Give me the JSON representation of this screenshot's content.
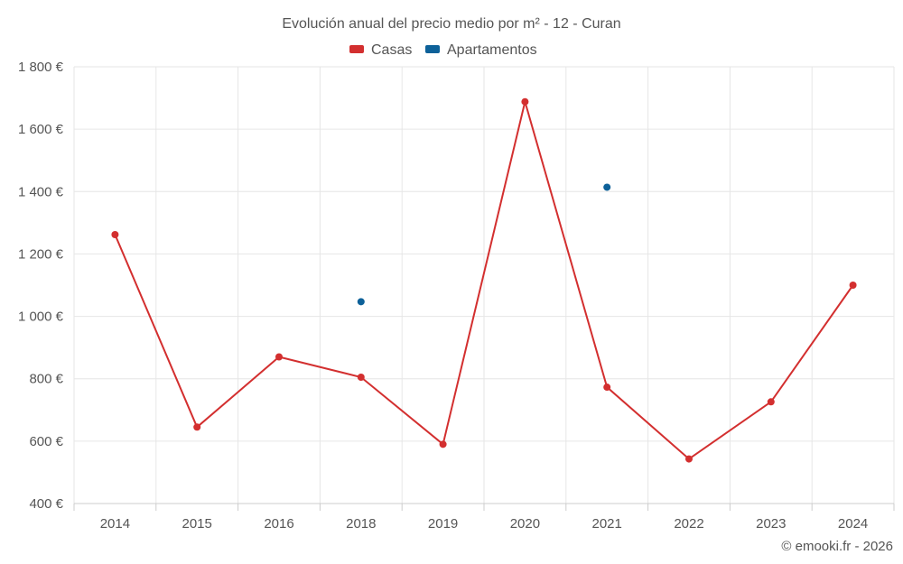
{
  "chart_data": {
    "type": "line",
    "title": "Evolución anual del precio medio por m² - 12 - Curan",
    "categories": [
      "2014",
      "2015",
      "2016",
      "2018",
      "2019",
      "2020",
      "2021",
      "2022",
      "2023",
      "2024"
    ],
    "series": [
      {
        "name": "Casas",
        "color": "#d32f2f",
        "values": [
          1262,
          645,
          870,
          805,
          590,
          1688,
          773,
          543,
          726,
          1100
        ]
      },
      {
        "name": "Apartamentos",
        "color": "#0d6199",
        "values": [
          null,
          null,
          null,
          1047,
          null,
          null,
          1414,
          null,
          null,
          null
        ]
      }
    ],
    "yticks": [
      "400 €",
      "600 €",
      "800 €",
      "1 000 €",
      "1 200 €",
      "1 400 €",
      "1 600 €",
      "1 800 €"
    ],
    "ylim": [
      400,
      1800
    ],
    "grid": true,
    "legend_position": "top-center",
    "credit": "© emooki.fr - 2026"
  }
}
